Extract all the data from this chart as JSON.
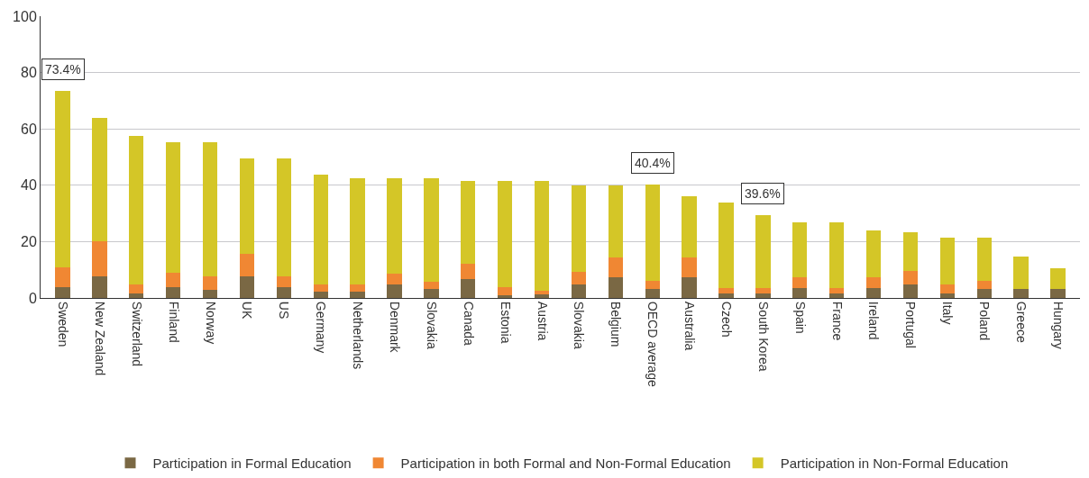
{
  "chart_data": {
    "type": "bar",
    "stacked": true,
    "categories": [
      "Sweden",
      "New Zealand",
      "Switzerland",
      "Finland",
      "Norway",
      "UK",
      "US",
      "Germany",
      "Netherlands",
      "Denmark",
      "Slovakia",
      "Canada",
      "Estonia",
      "Austria",
      "Slovakia",
      "Belgium",
      "OECD average",
      "Australia",
      "Czech",
      "South Korea",
      "Spain",
      "France",
      "Ireland",
      "Portugal",
      "Italy",
      "Poland",
      "Greece",
      "Hungary"
    ],
    "series": [
      {
        "name": "Participation in Formal Education",
        "color": "#7a6844",
        "values": [
          3.7,
          7.7,
          1.5,
          3.7,
          3.0,
          7.7,
          3.7,
          2.2,
          2.2,
          4.7,
          3.1,
          6.7,
          1.1,
          1.4,
          4.7,
          7.3,
          3.1,
          7.3,
          1.7,
          1.7,
          3.6,
          1.7,
          3.6,
          4.8,
          1.7,
          3.1,
          3.1,
          3.1
        ]
      },
      {
        "name": "Participation in both Formal and Non-Formal Education",
        "color": "#f08733",
        "values": [
          7.3,
          12.3,
          3.2,
          5.3,
          4.7,
          8.1,
          4.0,
          2.5,
          2.5,
          4.0,
          2.5,
          5.4,
          2.7,
          1.3,
          4.6,
          7.2,
          2.9,
          7.2,
          1.7,
          1.7,
          3.8,
          1.7,
          3.8,
          4.9,
          3.1,
          3.0,
          0,
          0
        ]
      },
      {
        "name": "Participation in Non-Formal Education",
        "color": "#d4c627",
        "values": [
          62.4,
          44.0,
          52.8,
          46.3,
          47.6,
          33.7,
          41.8,
          39.0,
          37.9,
          33.9,
          37.0,
          29.4,
          37.7,
          38.8,
          30.7,
          25.5,
          34.4,
          21.5,
          30.6,
          26.0,
          19.3,
          23.3,
          16.7,
          13.6,
          16.5,
          15.2,
          11.7,
          7.6
        ]
      }
    ],
    "ylim": [
      0,
      100
    ],
    "yticks": [
      0,
      20,
      40,
      60,
      80,
      100
    ],
    "grid": "y",
    "legend": "bottom",
    "annotations": [
      {
        "text": "73.4%",
        "x": "Sweden",
        "y": 73.4
      },
      {
        "text": "40.4%",
        "x": "OECD average",
        "y": 40.4
      },
      {
        "text": "39.6%",
        "x": "South Korea",
        "y": 29.4
      }
    ]
  }
}
